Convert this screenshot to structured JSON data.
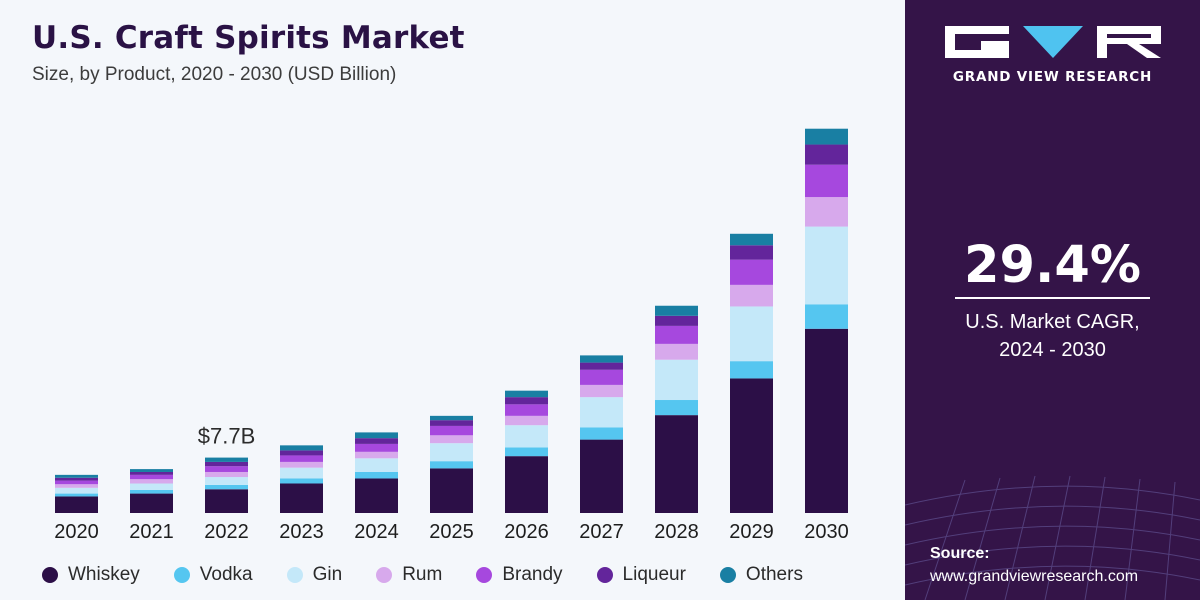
{
  "header": {
    "title": "U.S. Craft Spirits Market",
    "subtitle": "Size, by Product, 2020 - 2030 (USD Billion)"
  },
  "chart_data": {
    "type": "bar",
    "stacked": true,
    "title": "U.S. Craft Spirits Market",
    "subtitle": "Size, by Product, 2020 - 2030 (USD Billion)",
    "categories": [
      "2020",
      "2021",
      "2022",
      "2023",
      "2024",
      "2025",
      "2026",
      "2027",
      "2028",
      "2029",
      "2030"
    ],
    "series": [
      {
        "name": "Whiskey",
        "color": "#2c0f47",
        "values": [
          2.3,
          2.7,
          3.3,
          4.1,
          4.8,
          6.2,
          7.9,
          10.2,
          13.6,
          18.7,
          25.6
        ]
      },
      {
        "name": "Vodka",
        "color": "#55c6f0",
        "values": [
          0.4,
          0.5,
          0.6,
          0.7,
          0.9,
          1.0,
          1.2,
          1.7,
          2.1,
          2.4,
          3.4
        ]
      },
      {
        "name": "Gin",
        "color": "#c4e8f9",
        "values": [
          0.8,
          0.9,
          1.1,
          1.5,
          1.9,
          2.5,
          3.1,
          4.2,
          5.6,
          7.6,
          10.8
        ]
      },
      {
        "name": "Rum",
        "color": "#d7a9ec",
        "values": [
          0.5,
          0.6,
          0.7,
          0.8,
          0.9,
          1.1,
          1.3,
          1.7,
          2.2,
          3.0,
          4.1
        ]
      },
      {
        "name": "Brandy",
        "color": "#a648de",
        "values": [
          0.5,
          0.6,
          0.8,
          0.9,
          1.1,
          1.3,
          1.6,
          2.1,
          2.5,
          3.5,
          4.5
        ]
      },
      {
        "name": "Liqueur",
        "color": "#63259b",
        "values": [
          0.4,
          0.4,
          0.6,
          0.7,
          0.8,
          0.8,
          1.0,
          1.0,
          1.4,
          2.0,
          2.8
        ]
      },
      {
        "name": "Others",
        "color": "#197fa3",
        "values": [
          0.4,
          0.4,
          0.6,
          0.7,
          0.8,
          0.6,
          0.9,
          1.0,
          1.4,
          1.6,
          2.2
        ]
      }
    ],
    "annotations": [
      {
        "category": "2022",
        "text": "$7.7B"
      }
    ],
    "ylim": [
      0,
      56
    ],
    "xlabel": "",
    "ylabel": "",
    "grid": false,
    "legend": "bottom"
  },
  "sidebar": {
    "brand": "GRAND VIEW RESEARCH",
    "cagr_value": "29.4%",
    "cagr_label": "U.S. Market CAGR,",
    "cagr_period": "2024 - 2030",
    "source_title": "Source:",
    "source_url": "www.grandviewresearch.com"
  },
  "colors": {
    "title": "#2a1245",
    "sidebar_bg": "#341448",
    "chart_bg": "#f4f7fb"
  }
}
